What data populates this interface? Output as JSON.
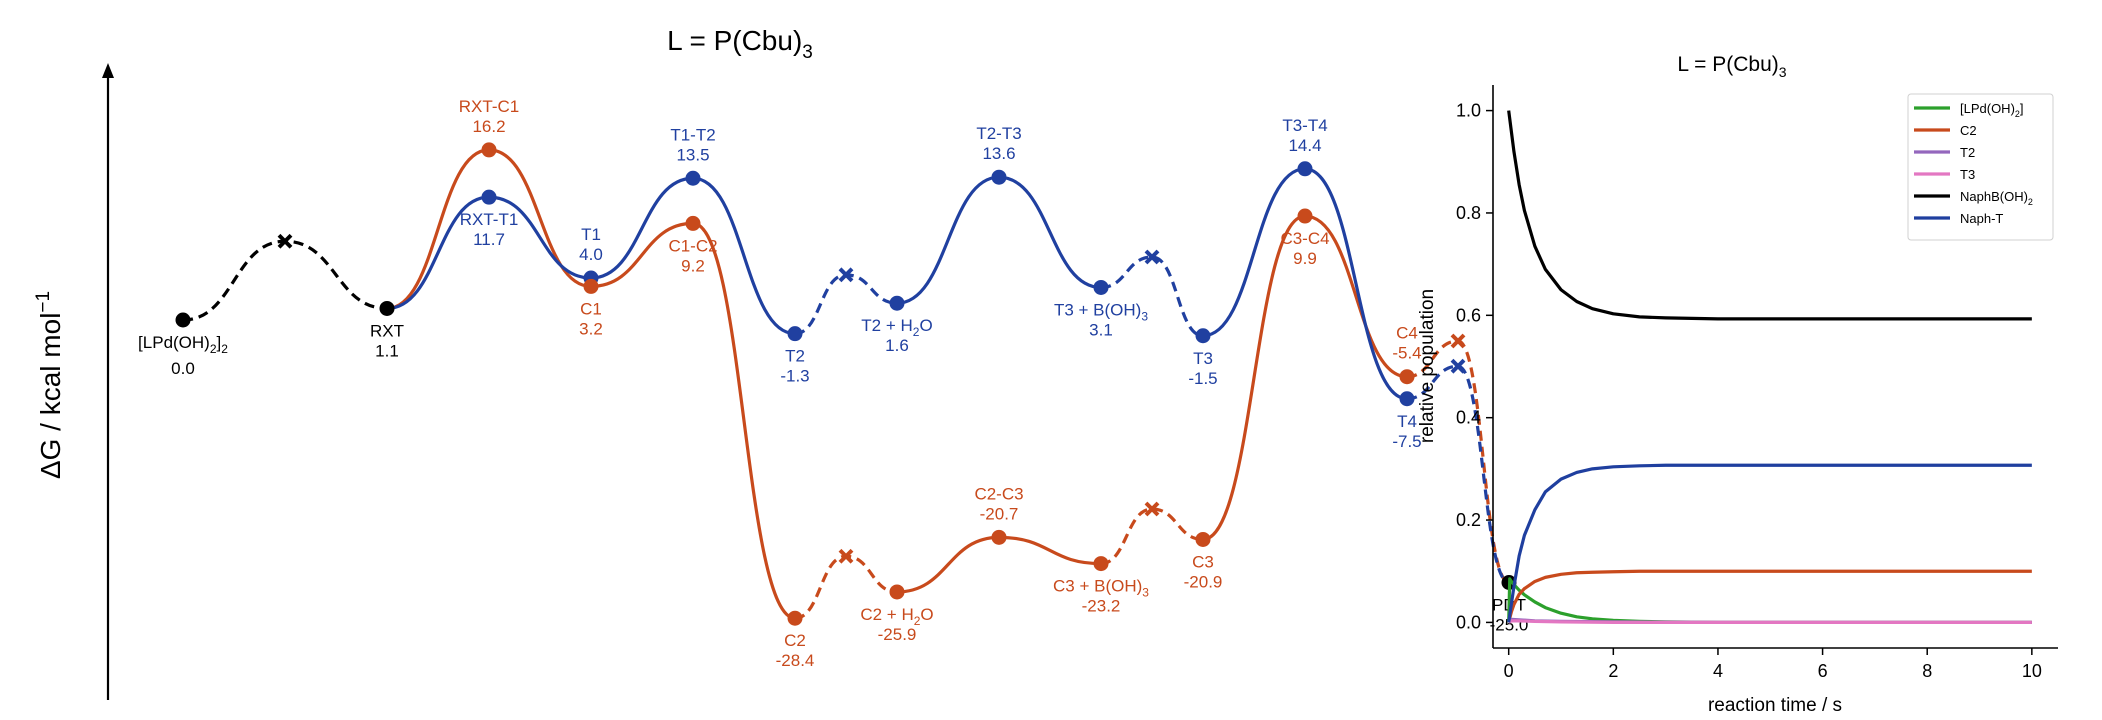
{
  "colors": {
    "copper": "#c84a1c",
    "tin": "#2040a0",
    "neutral": "#000000",
    "green": "#2ca02c",
    "orange": "#c84a1c",
    "purple": "#9467bd",
    "pink": "#e377c2",
    "black": "#000000",
    "blue": "#1f3f9f"
  },
  "chart_data": [
    {
      "type": "line",
      "title": {
        "main": "L = P(Cbu)",
        "sub": "3"
      },
      "ylabel": {
        "main": "ΔG / kcal mol",
        "sup": "−1"
      },
      "xlabel": "",
      "grid": false,
      "points": [
        {
          "id": "start",
          "x": 1,
          "y": 0.0,
          "group": "neutral",
          "label": "[LPd(OH)",
          "sub": "2",
          "tail": "]",
          "sub2": "2",
          "value_text": "0.0",
          "label_pos": "below"
        },
        {
          "id": "mid1",
          "x": 2,
          "y": 7.5,
          "group": "neutral",
          "marker": "x"
        },
        {
          "id": "rxt",
          "x": 3,
          "y": 1.1,
          "group": "neutral",
          "label": "RXT",
          "value_text": "1.1",
          "label_pos": "below"
        },
        {
          "id": "rxt-t1",
          "x": 4,
          "y": 11.7,
          "group": "tin",
          "label": "RXT-T1",
          "value_text": "11.7",
          "label_pos": "below"
        },
        {
          "id": "rxt-c1",
          "x": 4,
          "y": 16.2,
          "group": "copper",
          "label": "RXT-C1",
          "value_text": "16.2",
          "label_pos": "above"
        },
        {
          "id": "t1",
          "x": 5,
          "y": 4.0,
          "group": "tin",
          "label": "T1",
          "value_text": "4.0",
          "label_pos": "above"
        },
        {
          "id": "c1",
          "x": 5,
          "y": 3.2,
          "group": "copper",
          "label": "C1",
          "value_text": "3.2",
          "label_pos": "below"
        },
        {
          "id": "t1-t2",
          "x": 6,
          "y": 13.5,
          "group": "tin",
          "label": "T1-T2",
          "value_text": "13.5",
          "label_pos": "above"
        },
        {
          "id": "c1-c2",
          "x": 6,
          "y": 9.2,
          "group": "copper",
          "label": "C1-C2",
          "value_text": "9.2",
          "label_pos": "below"
        },
        {
          "id": "t2",
          "x": 7,
          "y": -1.3,
          "group": "tin",
          "label": "T2",
          "value_text": "-1.3",
          "label_pos": "below"
        },
        {
          "id": "c2",
          "x": 7,
          "y": -28.4,
          "group": "copper",
          "label": "C2",
          "value_text": "-28.4",
          "label_pos": "below"
        },
        {
          "id": "t2-mid",
          "x": 7.5,
          "y": 4.3,
          "group": "tin",
          "marker": "x"
        },
        {
          "id": "c2-mid",
          "x": 7.5,
          "y": -22.5,
          "group": "copper",
          "marker": "x"
        },
        {
          "id": "t2h2o",
          "x": 8,
          "y": 1.6,
          "group": "tin",
          "label": "T2 + H",
          "sub": "2",
          "tail": "O",
          "value_text": "1.6",
          "label_pos": "below"
        },
        {
          "id": "c2h2o",
          "x": 8,
          "y": -25.9,
          "group": "copper",
          "label": "C2 + H",
          "sub": "2",
          "tail": "O",
          "value_text": "-25.9",
          "label_pos": "below"
        },
        {
          "id": "t2-t3",
          "x": 9,
          "y": 13.6,
          "group": "tin",
          "label": "T2-T3",
          "value_text": "13.6",
          "label_pos": "above"
        },
        {
          "id": "c2-c3",
          "x": 9,
          "y": -20.7,
          "group": "copper",
          "label": "C2-C3",
          "value_text": "-20.7",
          "label_pos": "above"
        },
        {
          "id": "t3boh",
          "x": 10,
          "y": 3.1,
          "group": "tin",
          "label": "T3 + B(OH)",
          "sub": "3",
          "value_text": "3.1",
          "label_pos": "below"
        },
        {
          "id": "c3boh",
          "x": 10,
          "y": -23.2,
          "group": "copper",
          "label": "C3 + B(OH)",
          "sub": "3",
          "value_text": "-23.2",
          "label_pos": "below"
        },
        {
          "id": "t3-mid",
          "x": 10.5,
          "y": 6.0,
          "group": "tin",
          "marker": "x"
        },
        {
          "id": "c3-mid",
          "x": 10.5,
          "y": -18.0,
          "group": "copper",
          "marker": "x"
        },
        {
          "id": "t3",
          "x": 11,
          "y": -1.5,
          "group": "tin",
          "label": "T3",
          "value_text": "-1.5",
          "label_pos": "below"
        },
        {
          "id": "c3",
          "x": 11,
          "y": -20.9,
          "group": "copper",
          "label": "C3",
          "value_text": "-20.9",
          "label_pos": "below"
        },
        {
          "id": "t3-t4",
          "x": 12,
          "y": 14.4,
          "group": "tin",
          "label": "T3-T4",
          "value_text": "14.4",
          "label_pos": "above"
        },
        {
          "id": "c3-c4",
          "x": 12,
          "y": 9.9,
          "group": "copper",
          "label": "C3-C4",
          "value_text": "9.9",
          "label_pos": "below"
        },
        {
          "id": "t4",
          "x": 13,
          "y": -7.5,
          "group": "tin",
          "label": "T4",
          "value_text": "-7.5",
          "label_pos": "below"
        },
        {
          "id": "c4",
          "x": 13,
          "y": -5.4,
          "group": "copper",
          "label": "C4",
          "value_text": "-5.4",
          "label_pos": "above"
        },
        {
          "id": "t4-mid",
          "x": 13.5,
          "y": -4.4,
          "group": "tin",
          "marker": "x"
        },
        {
          "id": "c4-mid",
          "x": 13.5,
          "y": -2.0,
          "group": "copper",
          "marker": "x"
        },
        {
          "id": "pdt",
          "x": 14,
          "y": -25.0,
          "group": "neutral",
          "label": "PDT",
          "value_text": "-25.0",
          "label_pos": "below"
        }
      ],
      "paths": [
        {
          "group": "neutral",
          "style": "dashed",
          "nodes": [
            "start",
            "mid1",
            "rxt"
          ]
        },
        {
          "group": "copper",
          "style": "solid",
          "nodes": [
            "rxt",
            "rxt-c1",
            "c1",
            "c1-c2",
            "c2"
          ]
        },
        {
          "group": "copper",
          "style": "dashed",
          "nodes": [
            "c2",
            "c2-mid",
            "c2h2o"
          ]
        },
        {
          "group": "copper",
          "style": "solid",
          "nodes": [
            "c2h2o",
            "c2-c3",
            "c3boh"
          ]
        },
        {
          "group": "copper",
          "style": "dashed",
          "nodes": [
            "c3boh",
            "c3-mid",
            "c3"
          ]
        },
        {
          "group": "copper",
          "style": "solid",
          "nodes": [
            "c3",
            "c3-c4",
            "c4"
          ]
        },
        {
          "group": "copper",
          "style": "dashed",
          "nodes": [
            "c4",
            "c4-mid",
            "pdt"
          ]
        },
        {
          "group": "tin",
          "style": "solid",
          "nodes": [
            "rxt",
            "rxt-t1",
            "t1",
            "t1-t2",
            "t2"
          ]
        },
        {
          "group": "tin",
          "style": "dashed",
          "nodes": [
            "t2",
            "t2-mid",
            "t2h2o"
          ]
        },
        {
          "group": "tin",
          "style": "solid",
          "nodes": [
            "t2h2o",
            "t2-t3",
            "t3boh"
          ]
        },
        {
          "group": "tin",
          "style": "dashed",
          "nodes": [
            "t3boh",
            "t3-mid",
            "t3"
          ]
        },
        {
          "group": "tin",
          "style": "solid",
          "nodes": [
            "t3",
            "t3-t4",
            "t4"
          ]
        },
        {
          "group": "tin",
          "style": "dashed",
          "nodes": [
            "t4",
            "t4-mid",
            "pdt"
          ]
        }
      ]
    },
    {
      "type": "line",
      "title": {
        "main": "L = P(Cbu)",
        "sub": "3"
      },
      "xlabel": "reaction time / s",
      "ylabel": "relative population",
      "xlim": [
        -0.3,
        10.5
      ],
      "ylim": [
        -0.05,
        1.05
      ],
      "xticks": [
        0,
        2,
        4,
        6,
        8,
        10
      ],
      "yticks": [
        0.0,
        0.2,
        0.4,
        0.6,
        0.8,
        1.0
      ],
      "xtick_labels": [
        "0",
        "2",
        "4",
        "6",
        "8",
        "10"
      ],
      "ytick_labels": [
        "0.0",
        "0.2",
        "0.4",
        "0.6",
        "0.8",
        "1.0"
      ],
      "grid": false,
      "legend": "top-right",
      "series": [
        {
          "name": "[LPd(OH)",
          "name_sub": "2",
          "name_tail": "]",
          "color_key": "green",
          "x": [
            0,
            0.02,
            0.05,
            0.1,
            0.2,
            0.3,
            0.5,
            0.7,
            1.0,
            1.3,
            1.6,
            2.0,
            2.5,
            3,
            4,
            6,
            8,
            10
          ],
          "y": [
            0,
            0.085,
            0.08,
            0.074,
            0.063,
            0.054,
            0.04,
            0.029,
            0.018,
            0.011,
            0.007,
            0.004,
            0.002,
            0.001,
            0.0,
            0.0,
            0.0,
            0.0
          ]
        },
        {
          "name": "C2",
          "color_key": "orange",
          "x": [
            0,
            0.05,
            0.1,
            0.2,
            0.3,
            0.5,
            0.7,
            1.0,
            1.3,
            1.6,
            2.0,
            2.5,
            3,
            4,
            6,
            8,
            10
          ],
          "y": [
            0,
            0.02,
            0.035,
            0.055,
            0.066,
            0.08,
            0.088,
            0.094,
            0.097,
            0.098,
            0.099,
            0.1,
            0.1,
            0.1,
            0.1,
            0.1,
            0.1
          ]
        },
        {
          "name": "T2",
          "color_key": "purple",
          "x": [
            0,
            0.05,
            0.2,
            0.5,
            1.0,
            2.0,
            4,
            10
          ],
          "y": [
            0,
            0.006,
            0.005,
            0.003,
            0.002,
            0.001,
            0.0,
            0.0
          ]
        },
        {
          "name": "T3",
          "color_key": "pink",
          "x": [
            0,
            0.05,
            0.2,
            0.5,
            1.0,
            2.0,
            4,
            10
          ],
          "y": [
            0,
            0.003,
            0.003,
            0.002,
            0.001,
            0.0,
            0.0,
            0.0
          ]
        },
        {
          "name": "NaphB(OH)",
          "name_sub": "2",
          "color_key": "black",
          "x": [
            0,
            0.1,
            0.2,
            0.3,
            0.5,
            0.7,
            1.0,
            1.3,
            1.6,
            2.0,
            2.5,
            3,
            4,
            5,
            6,
            8,
            10
          ],
          "y": [
            1.0,
            0.92,
            0.855,
            0.805,
            0.735,
            0.69,
            0.65,
            0.627,
            0.613,
            0.603,
            0.597,
            0.595,
            0.593,
            0.593,
            0.593,
            0.593,
            0.593
          ]
        },
        {
          "name": "Naph-T",
          "color_key": "blue",
          "x": [
            0,
            0.1,
            0.2,
            0.3,
            0.5,
            0.7,
            1.0,
            1.3,
            1.6,
            2.0,
            2.5,
            3,
            4,
            5,
            6,
            8,
            10
          ],
          "y": [
            0,
            0.07,
            0.13,
            0.17,
            0.22,
            0.255,
            0.28,
            0.293,
            0.3,
            0.304,
            0.306,
            0.307,
            0.307,
            0.307,
            0.307,
            0.307,
            0.307
          ]
        }
      ]
    }
  ]
}
